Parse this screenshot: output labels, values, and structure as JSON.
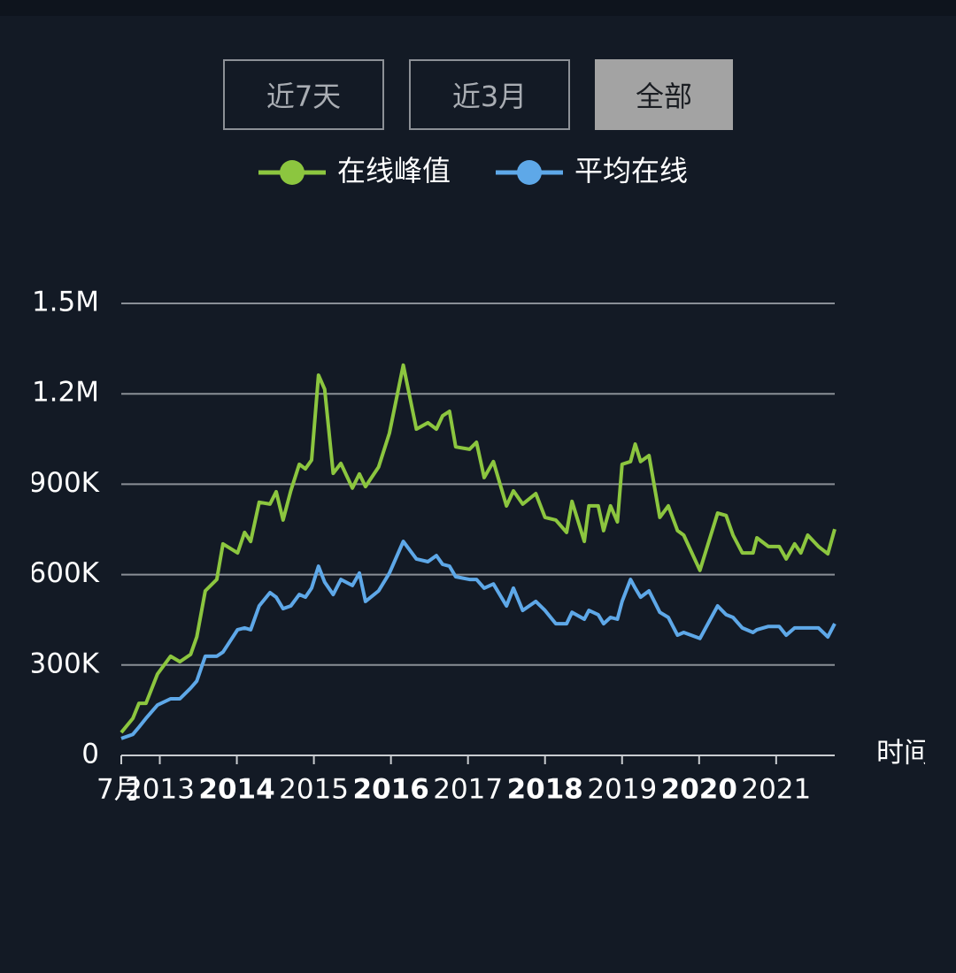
{
  "buttons": [
    "近7天",
    "近3月",
    "全部"
  ],
  "chart_data": {
    "type": "line",
    "x_label": "时间",
    "x": [
      2012.5,
      2012.65,
      2012.73,
      2012.82,
      2012.97,
      2013.14,
      2013.26,
      2013.4,
      2013.48,
      2013.59,
      2013.74,
      2013.82,
      2014.01,
      2014.1,
      2014.18,
      2014.29,
      2014.43,
      2014.51,
      2014.6,
      2014.7,
      2014.81,
      2014.89,
      2014.97,
      2015.06,
      2015.14,
      2015.25,
      2015.35,
      2015.5,
      2015.59,
      2015.67,
      2015.84,
      2015.98,
      2016.16,
      2016.33,
      2016.48,
      2016.59,
      2016.67,
      2016.76,
      2016.84,
      2017.02,
      2017.11,
      2017.21,
      2017.33,
      2017.5,
      2017.59,
      2017.71,
      2017.88,
      2018.0,
      2018.14,
      2018.28,
      2018.35,
      2018.51,
      2018.57,
      2018.69,
      2018.76,
      2018.85,
      2018.94,
      2019.0,
      2019.11,
      2019.17,
      2019.24,
      2019.35,
      2019.49,
      2019.6,
      2019.72,
      2019.8,
      2020.01,
      2020.24,
      2020.35,
      2020.44,
      2020.56,
      2020.7,
      2020.75,
      2020.9,
      2021.04,
      2021.13,
      2021.24,
      2021.32,
      2021.41,
      2021.55,
      2021.67,
      2021.76
    ],
    "series": [
      {
        "name": "在线峰值",
        "color": "#8cc63f",
        "values": [
          76000,
          123000,
          173000,
          173000,
          270000,
          329000,
          311000,
          335000,
          393000,
          546000,
          584000,
          702000,
          672000,
          740000,
          710000,
          840000,
          834000,
          875000,
          781000,
          878000,
          966000,
          951000,
          980000,
          1262000,
          1215000,
          936000,
          969000,
          887000,
          934000,
          892000,
          957000,
          1069000,
          1295000,
          1083000,
          1104000,
          1083000,
          1127000,
          1142000,
          1024000,
          1016000,
          1039000,
          922000,
          975000,
          828000,
          878000,
          834000,
          869000,
          790000,
          781000,
          740000,
          843000,
          710000,
          828000,
          828000,
          746000,
          828000,
          775000,
          966000,
          975000,
          1033000,
          975000,
          995000,
          790000,
          828000,
          746000,
          731000,
          614000,
          804000,
          796000,
          731000,
          672000,
          672000,
          722000,
          693000,
          693000,
          652000,
          702000,
          672000,
          731000,
          693000,
          669000,
          751000
        ]
      },
      {
        "name": "平均在线",
        "color": "#5ea8e8",
        "values": [
          56000,
          70000,
          94000,
          123000,
          167000,
          188000,
          188000,
          223000,
          247000,
          329000,
          329000,
          343000,
          417000,
          423000,
          417000,
          496000,
          540000,
          525000,
          487000,
          496000,
          534000,
          525000,
          555000,
          628000,
          575000,
          534000,
          584000,
          564000,
          605000,
          511000,
          546000,
          605000,
          710000,
          652000,
          643000,
          663000,
          634000,
          628000,
          593000,
          584000,
          584000,
          555000,
          569000,
          496000,
          555000,
          481000,
          511000,
          481000,
          437000,
          437000,
          475000,
          452000,
          481000,
          467000,
          437000,
          458000,
          452000,
          511000,
          584000,
          555000,
          525000,
          546000,
          475000,
          458000,
          399000,
          408000,
          388000,
          496000,
          467000,
          458000,
          423000,
          408000,
          417000,
          428000,
          428000,
          399000,
          423000,
          423000,
          423000,
          423000,
          393000,
          437000
        ]
      }
    ],
    "xlim": [
      2012.5,
      2021.76
    ],
    "xticks": [
      {
        "value": 2012.5,
        "label": "7月"
      },
      2013,
      2014,
      2015,
      2016,
      2017,
      2018,
      2019,
      2020,
      2021
    ],
    "ylim": [
      0,
      1500000
    ],
    "yticks": [
      0,
      {
        "value": 300000,
        "label": "300K"
      },
      {
        "value": 600000,
        "label": "600K"
      },
      {
        "value": 900000,
        "label": "900K"
      },
      {
        "value": 1200000,
        "label": "1.2M"
      },
      {
        "value": 1500000,
        "label": "1.5M"
      }
    ],
    "grid": true,
    "legend": "top"
  }
}
